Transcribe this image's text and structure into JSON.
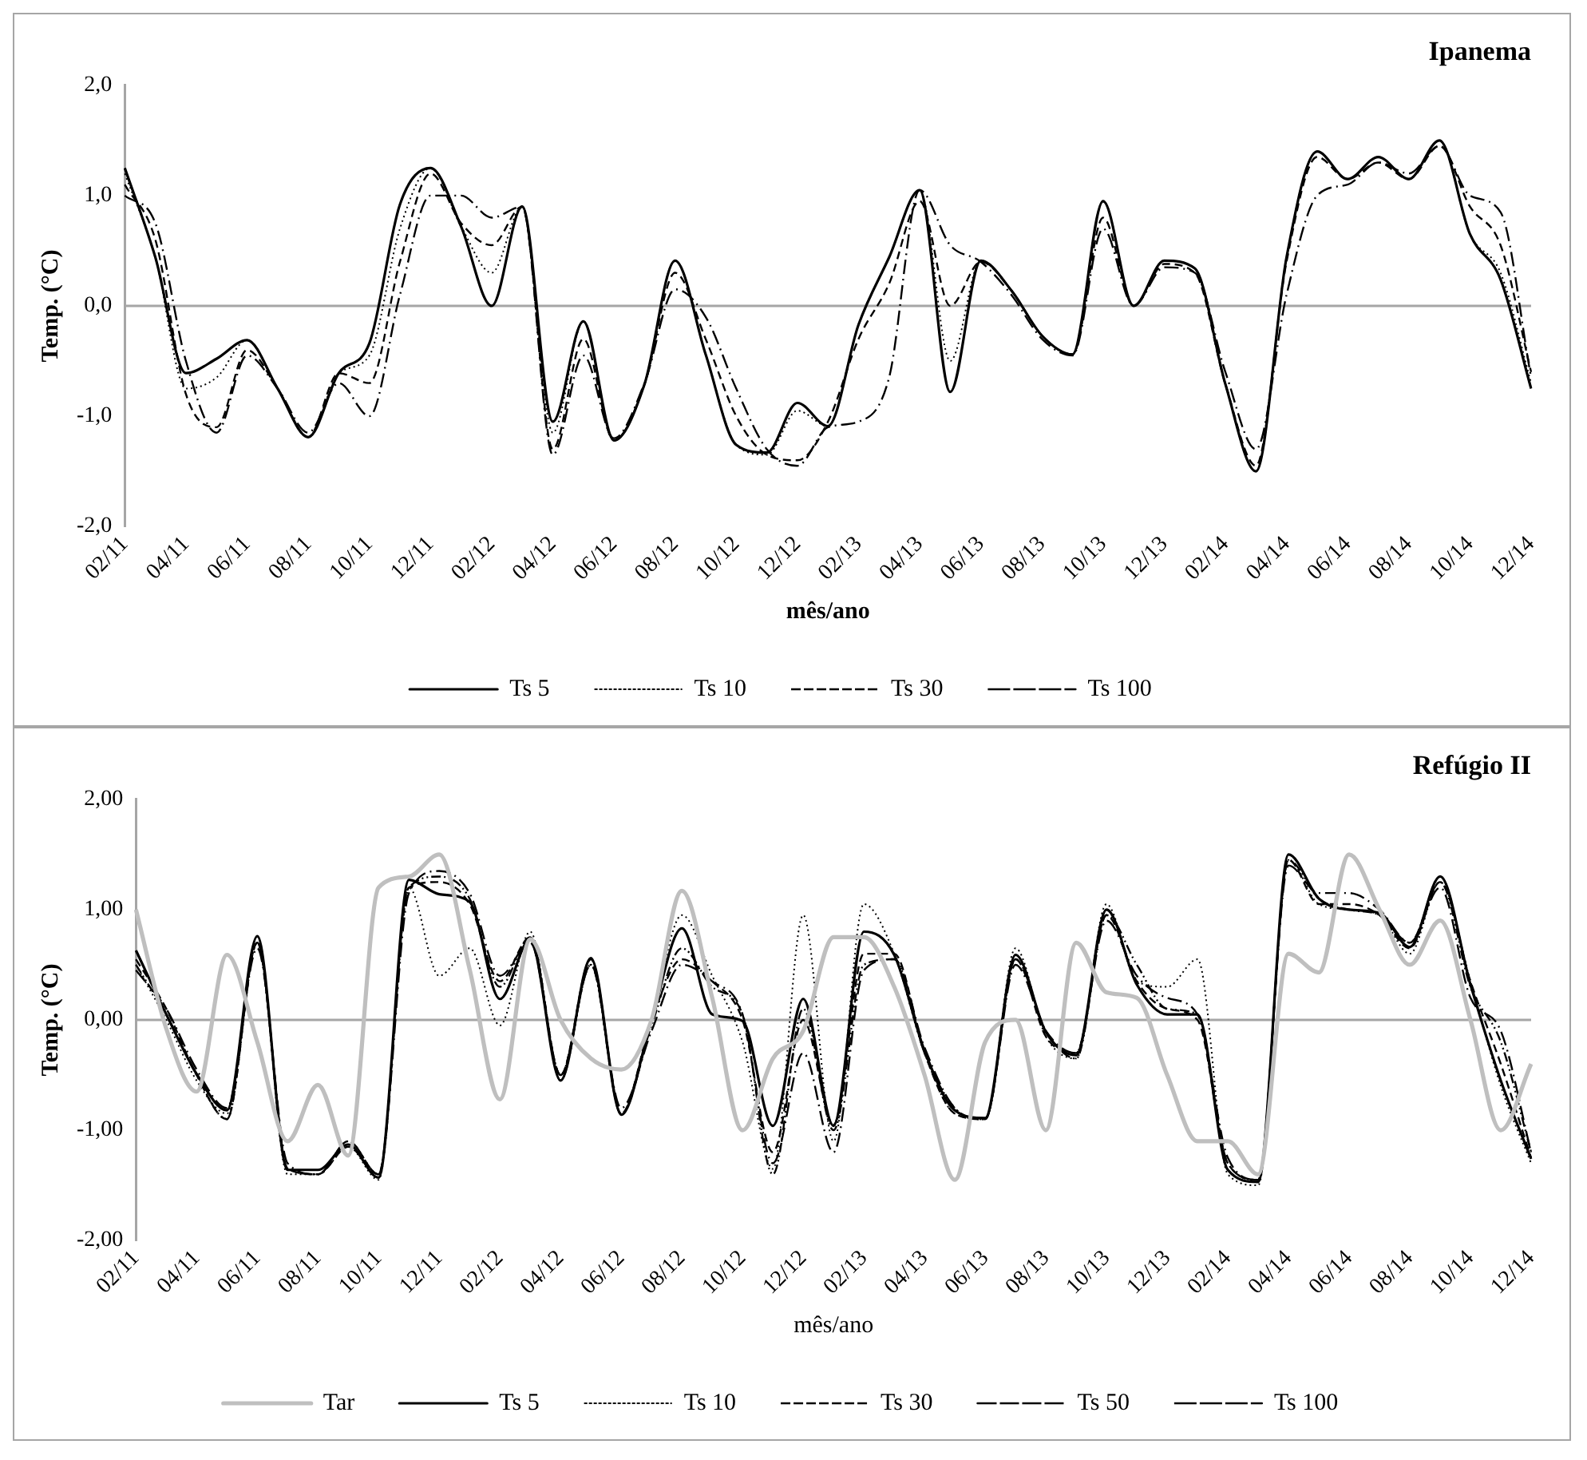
{
  "chart_data": [
    {
      "type": "line",
      "title": "Ipanema",
      "xlabel": "mês/ano",
      "ylabel": "Temp. (°C)",
      "legend": "bottom",
      "grid": false,
      "categories": [
        "02/11",
        null,
        "04/11",
        null,
        "06/11",
        null,
        "08/11",
        null,
        "10/11",
        null,
        "12/11",
        null,
        "02/12",
        null,
        "04/12",
        null,
        "06/12",
        null,
        "08/12",
        null,
        "10/12",
        null,
        "12/12",
        null,
        "02/13",
        null,
        "04/13",
        null,
        "06/13",
        null,
        "08/13",
        null,
        "10/13",
        null,
        "12/13",
        null,
        "02/14",
        null,
        "04/14",
        null,
        "06/14",
        null,
        "08/14",
        null,
        "10/14",
        null,
        "12/14"
      ],
      "ylim": [
        -2,
        2
      ],
      "yticks": [
        {
          "value": -2,
          "label": "-2,0"
        },
        {
          "value": -1,
          "label": "-1,0"
        },
        {
          "value": 0,
          "label": "0,0"
        },
        {
          "value": 1,
          "label": "1,0"
        },
        {
          "value": 2,
          "label": "2,0"
        }
      ],
      "ref_lines": [
        {
          "axis": "y",
          "value": 0,
          "color": "#a6a6a6"
        }
      ],
      "series": [
        {
          "name": "Ts 5",
          "color": "#000000",
          "line_style": "solid",
          "values": [
            1.25,
            0.44,
            -0.61,
            -0.48,
            -0.31,
            -0.75,
            -1.19,
            -0.61,
            -0.34,
            0.92,
            1.25,
            0.72,
            0.0,
            0.9,
            -1.05,
            -0.14,
            -1.22,
            -0.71,
            0.41,
            -0.44,
            -1.26,
            -1.33,
            -0.88,
            -1.09,
            -0.17,
            0.44,
            1.05,
            -0.78,
            0.41,
            0.14,
            -0.27,
            -0.44,
            0.95,
            0.0,
            0.41,
            0.34,
            -0.71,
            -1.5,
            0.44,
            1.4,
            1.15,
            1.35,
            1.15,
            1.5,
            0.65,
            0.24,
            -0.75
          ]
        },
        {
          "name": "Ts 10",
          "color": "#000000",
          "line_style": "dotted",
          "values": [
            1.2,
            0.44,
            -0.75,
            -0.65,
            -0.31,
            -0.75,
            -1.19,
            -0.61,
            -0.45,
            0.7,
            1.25,
            0.72,
            0.3,
            0.9,
            -1.15,
            -0.14,
            -1.22,
            -0.71,
            0.41,
            -0.44,
            -1.26,
            -1.35,
            -0.95,
            -1.09,
            -0.17,
            0.44,
            1.05,
            -0.5,
            0.41,
            0.14,
            -0.27,
            -0.44,
            0.95,
            0.0,
            0.41,
            0.34,
            -0.71,
            -1.5,
            0.44,
            1.4,
            1.15,
            1.35,
            1.15,
            1.5,
            0.65,
            0.3,
            -0.7
          ]
        },
        {
          "name": "Ts 30",
          "color": "#000000",
          "line_style": "dashed",
          "values": [
            1.1,
            0.6,
            -0.8,
            -1.1,
            -0.4,
            -0.75,
            -1.19,
            -0.61,
            -0.7,
            0.4,
            1.2,
            0.75,
            0.55,
            0.9,
            -1.3,
            -0.3,
            -1.22,
            -0.71,
            0.3,
            -0.3,
            -1.0,
            -1.35,
            -1.4,
            -1.05,
            -0.3,
            0.2,
            0.95,
            0.0,
            0.4,
            0.14,
            -0.27,
            -0.44,
            0.8,
            0.0,
            0.38,
            0.3,
            -0.71,
            -1.45,
            0.4,
            1.35,
            1.15,
            1.3,
            1.15,
            1.45,
            0.9,
            0.55,
            -0.6
          ]
        },
        {
          "name": "Ts 100",
          "color": "#000000",
          "line_style": "long-dashdot",
          "values": [
            1.0,
            0.75,
            -0.5,
            -1.15,
            -0.45,
            -0.75,
            -1.15,
            -0.7,
            -1.0,
            0.1,
            1.0,
            1.0,
            0.8,
            0.9,
            -1.35,
            -0.45,
            -1.2,
            -0.7,
            0.15,
            -0.1,
            -0.75,
            -1.3,
            -1.45,
            -1.1,
            -1.05,
            -0.65,
            1.05,
            0.55,
            0.4,
            0.1,
            -0.3,
            -0.45,
            0.7,
            0.0,
            0.35,
            0.3,
            -0.6,
            -1.3,
            0.1,
            1.0,
            1.1,
            1.3,
            1.2,
            1.45,
            1.0,
            0.85,
            -0.65
          ]
        }
      ]
    },
    {
      "type": "line",
      "title": "Refúgio II",
      "xlabel": "mês/ano",
      "ylabel": "Temp. (°C)",
      "legend": "bottom",
      "grid": false,
      "categories": [
        "02/11",
        null,
        "04/11",
        null,
        "06/11",
        null,
        "08/11",
        null,
        "10/11",
        null,
        "12/11",
        null,
        "02/12",
        null,
        "04/12",
        null,
        "06/12",
        null,
        "08/12",
        null,
        "10/12",
        null,
        "12/12",
        null,
        "02/13",
        null,
        "04/13",
        null,
        "06/13",
        null,
        "08/13",
        null,
        "10/13",
        null,
        "12/13",
        null,
        "02/14",
        null,
        "04/14",
        null,
        "06/14",
        null,
        "08/14",
        null,
        "10/14",
        null,
        "12/14"
      ],
      "ylim": [
        -2,
        2
      ],
      "yticks": [
        {
          "value": -2,
          "label": "-2,00"
        },
        {
          "value": -1,
          "label": "-1,00"
        },
        {
          "value": 0,
          "label": "0,00"
        },
        {
          "value": 1,
          "label": "1,00"
        },
        {
          "value": 2,
          "label": "2,00"
        }
      ],
      "ref_lines": [
        {
          "axis": "y",
          "value": 0,
          "color": "#a6a6a6"
        }
      ],
      "series": [
        {
          "name": "Tar",
          "color": "#bfbfbf",
          "line_style": "solid",
          "values": [
            1.0,
            -0.08,
            -0.65,
            0.59,
            -0.2,
            -1.1,
            -0.59,
            -1.23,
            1.2,
            1.3,
            1.5,
            0.46,
            -0.72,
            0.73,
            0.0,
            -0.35,
            -0.45,
            0.0,
            1.17,
            0.2,
            -1.0,
            -0.35,
            -0.1,
            0.75,
            0.75,
            0.3,
            -0.5,
            -1.45,
            -0.2,
            0.0,
            -1.0,
            0.7,
            0.25,
            0.2,
            -0.5,
            -1.1,
            -1.1,
            -1.4,
            0.6,
            0.43,
            1.5,
            1.0,
            0.5,
            0.9,
            0.0,
            -1.0,
            -0.4
          ]
        },
        {
          "name": "Ts 5",
          "color": "#000000",
          "line_style": "solid",
          "values": [
            0.63,
            0.05,
            -0.49,
            -0.82,
            0.76,
            -1.36,
            -1.36,
            -1.13,
            -1.43,
            1.27,
            1.14,
            1.07,
            0.19,
            0.73,
            -0.55,
            0.56,
            -0.86,
            0.0,
            0.83,
            0.05,
            -0.01,
            -0.96,
            0.19,
            -0.96,
            0.8,
            0.59,
            -0.28,
            -0.82,
            -0.89,
            0.59,
            -0.11,
            -0.32,
            1.0,
            0.32,
            0.05,
            0.05,
            -1.36,
            -1.47,
            1.5,
            1.1,
            1.0,
            0.97,
            0.66,
            1.3,
            0.32,
            -0.55,
            -1.26
          ]
        },
        {
          "name": "Ts 10",
          "color": "#000000",
          "line_style": "dotted",
          "values": [
            0.5,
            0.0,
            -0.55,
            -0.85,
            0.7,
            -1.4,
            -1.4,
            -1.15,
            -1.45,
            1.2,
            0.4,
            0.65,
            -0.05,
            0.8,
            -0.55,
            0.5,
            -0.85,
            0.0,
            0.95,
            0.4,
            -0.2,
            -1.35,
            0.95,
            -1.1,
            1.05,
            0.6,
            -0.3,
            -0.85,
            -0.9,
            0.65,
            -0.15,
            -0.35,
            1.05,
            0.35,
            0.3,
            0.55,
            -1.4,
            -1.5,
            1.45,
            1.05,
            1.0,
            0.95,
            0.6,
            1.25,
            0.35,
            -0.6,
            -1.3
          ]
        },
        {
          "name": "Ts 30",
          "color": "#000000",
          "line_style": "dashed",
          "values": [
            0.55,
            0.1,
            -0.5,
            -0.9,
            0.7,
            -1.35,
            -1.4,
            -1.15,
            -1.4,
            1.2,
            1.25,
            1.05,
            0.35,
            0.75,
            -0.5,
            0.55,
            -0.85,
            0.0,
            0.55,
            0.35,
            0.0,
            -1.2,
            0.0,
            -0.95,
            0.6,
            0.6,
            -0.3,
            -0.85,
            -0.9,
            0.55,
            -0.15,
            -0.3,
            0.95,
            0.35,
            0.1,
            0.0,
            -1.3,
            -1.45,
            1.45,
            1.05,
            1.05,
            0.95,
            0.65,
            1.25,
            0.35,
            -0.4,
            -1.25
          ]
        },
        {
          "name": "Ts 50",
          "color": "#000000",
          "line_style": "dashdot",
          "values": [
            0.5,
            0.05,
            -0.5,
            -0.9,
            0.7,
            -1.35,
            -1.4,
            -1.1,
            -1.4,
            1.2,
            1.3,
            1.1,
            0.3,
            0.75,
            -0.5,
            0.5,
            -0.85,
            -0.05,
            0.65,
            0.3,
            0.05,
            -1.4,
            0.1,
            -1.0,
            0.5,
            0.55,
            -0.3,
            -0.8,
            -0.9,
            0.55,
            -0.1,
            -0.35,
            0.95,
            0.5,
            0.1,
            0.05,
            -1.3,
            -1.45,
            1.45,
            1.1,
            1.0,
            0.95,
            0.7,
            1.25,
            0.3,
            -0.2,
            -1.2
          ]
        },
        {
          "name": "Ts 100",
          "color": "#000000",
          "line_style": "long-dashdot",
          "values": [
            0.45,
            0.1,
            -0.45,
            -0.8,
            0.65,
            -1.3,
            -1.4,
            -1.1,
            -1.4,
            1.15,
            1.35,
            1.15,
            0.4,
            0.7,
            -0.5,
            0.5,
            -0.8,
            -0.1,
            0.5,
            0.35,
            0.05,
            -1.3,
            -0.3,
            -1.2,
            0.45,
            0.55,
            -0.25,
            -0.8,
            -0.9,
            0.5,
            -0.1,
            -0.3,
            0.9,
            0.4,
            0.2,
            0.05,
            -1.25,
            -1.45,
            1.4,
            1.15,
            1.15,
            1.0,
            0.7,
            1.2,
            0.2,
            -0.1,
            -1.2
          ]
        }
      ]
    }
  ]
}
